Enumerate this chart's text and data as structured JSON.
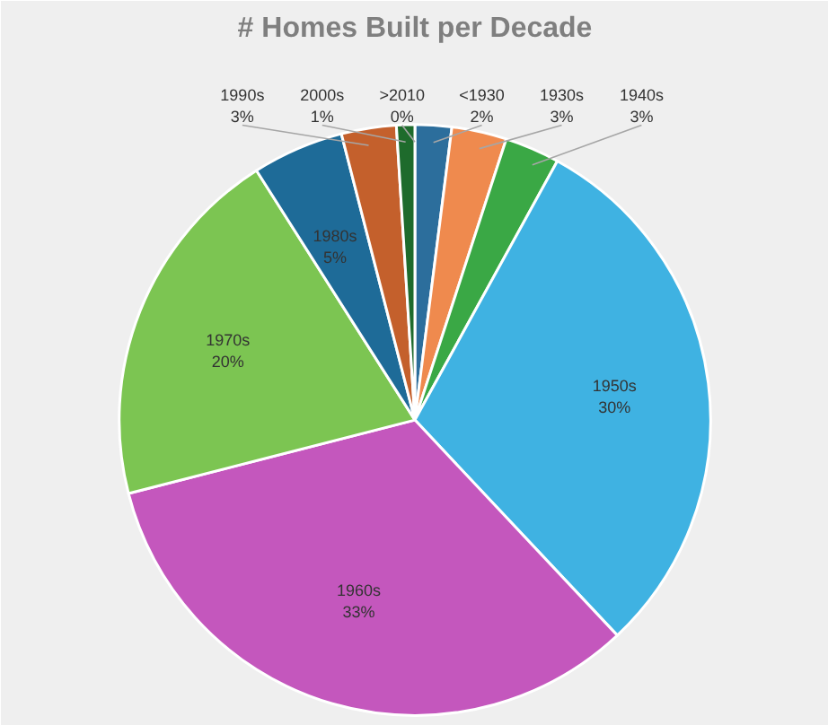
{
  "chart_data": {
    "type": "pie",
    "title": "# Homes Built per Decade",
    "categories": [
      "<1930",
      "1930s",
      "1940s",
      "1950s",
      "1960s",
      "1970s",
      "1980s",
      "1990s",
      "2000s",
      ">2010"
    ],
    "values": [
      2,
      3,
      3,
      30,
      33,
      20,
      5,
      3,
      1,
      0
    ],
    "value_labels": [
      "2%",
      "3%",
      "3%",
      "30%",
      "33%",
      "20%",
      "5%",
      "3%",
      "1%",
      "0%"
    ],
    "colors": [
      "#2c6e9c",
      "#ef8a4e",
      "#3aa845",
      "#3fb2e2",
      "#c457bd",
      "#7cc552",
      "#1e6b98",
      "#c4602c",
      "#1e6b2c",
      "#5a8fc0"
    ]
  }
}
